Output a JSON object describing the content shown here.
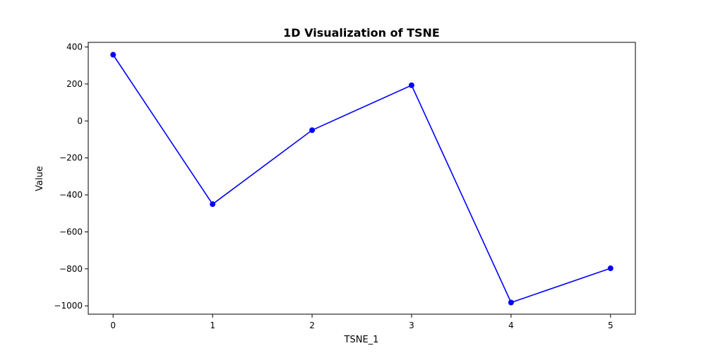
{
  "chart_data": {
    "type": "line",
    "title": "1D Visualization of TSNE",
    "xlabel": "TSNE_1",
    "ylabel": "Value",
    "x": [
      0,
      1,
      2,
      3,
      4,
      5
    ],
    "series": [
      {
        "values": [
          358,
          -450,
          -50,
          193,
          -982,
          -797
        ]
      }
    ],
    "xlim": [
      -0.25,
      5.25
    ],
    "ylim": [
      -1045,
      425
    ],
    "xticks": [
      "0",
      "1",
      "2",
      "3",
      "4",
      "5"
    ],
    "yticks": [
      "400",
      "200",
      "0",
      "−200",
      "−400",
      "−600",
      "−800",
      "−1000"
    ],
    "ytick_values": [
      400,
      200,
      0,
      -200,
      -400,
      -600,
      -800,
      -1000
    ],
    "grid": false,
    "legend": "none",
    "line_color": "#0000ff",
    "marker_color": "#0000ff"
  }
}
